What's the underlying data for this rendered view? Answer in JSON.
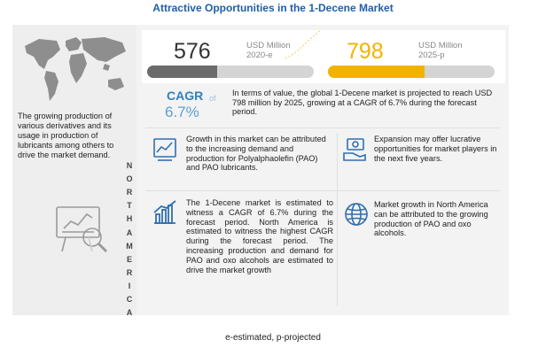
{
  "title": "Attractive Opportunities in the  1-Decene Market",
  "left": {
    "map_icon": "world-map-icon",
    "text": "The growing production of various derivatives and its usage in production of lubricants among others to drive the market demand.",
    "research_icon": "market-research-icon"
  },
  "region_letters_1": [
    "N",
    "O",
    "R",
    "T",
    "H"
  ],
  "region_letters_2": [
    "A",
    "M",
    "E",
    "R",
    "I",
    "C",
    "A"
  ],
  "market": {
    "value_2020": "576",
    "unit_2020": "USD Million",
    "year_2020": "2020-e",
    "value_2025": "798",
    "unit_2025": "USD Million",
    "year_2025": "2025-p",
    "fill_2020": 0.42,
    "fill_2025": 0.58
  },
  "cagr": {
    "label": "CAGR",
    "of": "of",
    "value": "6.7%"
  },
  "intro": "In terms of value, the global 1-Decene market is projected to reach USD 798 million by 2025, growing at a CAGR of 6.7% during the forecast period.",
  "cards": [
    {
      "icon": "growth-chart-icon",
      "text": "Growth in this market can be attributed to the increasing demand and production for Polyalphaolefin (PAO) and PAO lubricants."
    },
    {
      "icon": "money-stack-icon",
      "text": "Expansion may offer lucrative opportunities for market players in the next five years."
    },
    {
      "icon": "bar-chart-icon",
      "text": "The 1-Decene market is estimated to witness a CAGR of 6.7% during the forecast period. North America is estimated to witness the highest CAGR during the forecast period. The increasing production and demand for PAO and oxo alcohols are estimated to drive the market growth"
    },
    {
      "icon": "globe-icon",
      "text": "Market growth in North America can be attributed to the growing production of PAO and oxo alcohols."
    }
  ],
  "footnote": "e-estimated, p-projected",
  "colors": {
    "title": "#1f5fa8",
    "accent_yellow": "#f2b300",
    "accent_blue": "#2f7fc1",
    "bar_gray": "#6b6b6b"
  }
}
